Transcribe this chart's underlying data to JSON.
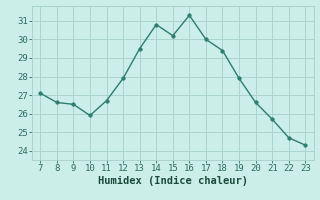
{
  "x": [
    7,
    8,
    9,
    10,
    11,
    12,
    13,
    14,
    15,
    16,
    17,
    18,
    19,
    20,
    21,
    22,
    23
  ],
  "y": [
    27.1,
    26.6,
    26.5,
    25.9,
    26.7,
    27.9,
    29.5,
    30.8,
    30.2,
    31.3,
    30.0,
    29.4,
    27.9,
    26.6,
    25.7,
    24.7,
    24.3
  ],
  "xlabel": "Humidex (Indice chaleur)",
  "ylim": [
    23.5,
    31.8
  ],
  "xlim": [
    6.5,
    23.5
  ],
  "yticks": [
    24,
    25,
    26,
    27,
    28,
    29,
    30,
    31
  ],
  "xticks": [
    7,
    8,
    9,
    10,
    11,
    12,
    13,
    14,
    15,
    16,
    17,
    18,
    19,
    20,
    21,
    22,
    23
  ],
  "line_color": "#2e7d6e",
  "marker_color": "#2e7d6e",
  "bg_color": "#cceee8",
  "grid_color": "#aad4cc",
  "tick_label_color": "#2e6b5e",
  "xlabel_color": "#1a4a3a",
  "tick_fontsize": 6.5,
  "xlabel_fontsize": 7.5
}
